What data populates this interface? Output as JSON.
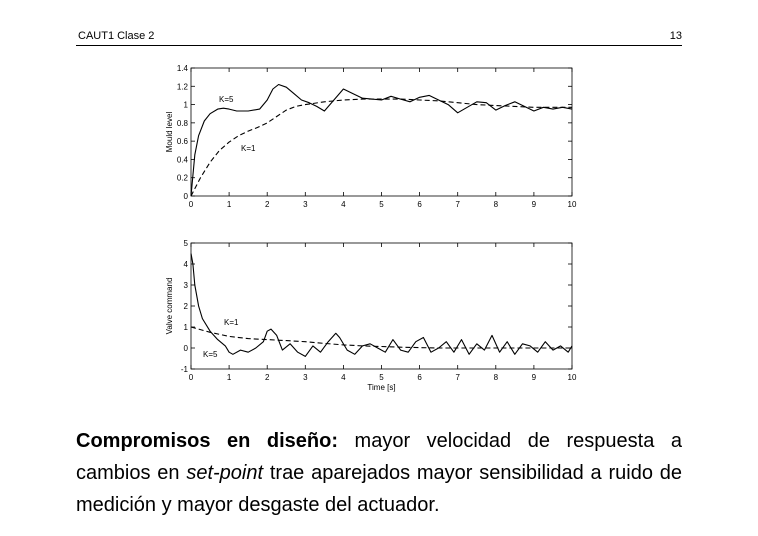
{
  "header": {
    "left": "CAUT1 Clase 2",
    "right": "13"
  },
  "chart_data": [
    {
      "type": "line",
      "ylabel": "Mould level",
      "xlim": [
        0,
        10
      ],
      "ylim": [
        0,
        1.4
      ],
      "xticks": [
        0,
        1,
        2,
        3,
        4,
        5,
        6,
        7,
        8,
        9,
        10
      ],
      "yticks": [
        0,
        0.2,
        0.4,
        0.6,
        0.8,
        1,
        1.2,
        1.4
      ],
      "series": [
        {
          "name": "K=5",
          "style": "solid",
          "x": [
            0,
            0.1,
            0.2,
            0.35,
            0.5,
            0.7,
            0.85,
            1.0,
            1.2,
            1.5,
            1.8,
            2.0,
            2.15,
            2.3,
            2.5,
            2.7,
            2.9,
            3.1,
            3.3,
            3.5,
            3.75,
            4.0,
            4.25,
            4.5,
            4.75,
            5.0,
            5.25,
            5.5,
            5.75,
            6.0,
            6.25,
            6.5,
            6.75,
            7.0,
            7.25,
            7.5,
            7.75,
            8.0,
            8.25,
            8.5,
            8.75,
            9.0,
            9.25,
            9.5,
            9.75,
            10.0
          ],
          "values": [
            0,
            0.45,
            0.66,
            0.82,
            0.9,
            0.95,
            0.96,
            0.95,
            0.93,
            0.93,
            0.95,
            1.05,
            1.17,
            1.22,
            1.19,
            1.12,
            1.05,
            1.02,
            0.98,
            0.93,
            1.05,
            1.17,
            1.12,
            1.07,
            1.06,
            1.05,
            1.09,
            1.06,
            1.03,
            1.08,
            1.1,
            1.05,
            1.0,
            0.91,
            0.97,
            1.03,
            1.02,
            0.94,
            0.99,
            1.03,
            0.98,
            0.93,
            0.97,
            0.95,
            0.97,
            0.95
          ]
        },
        {
          "name": "K=1",
          "style": "dashed",
          "x": [
            0,
            0.25,
            0.5,
            0.75,
            1.0,
            1.25,
            1.5,
            1.75,
            2.0,
            2.25,
            2.5,
            2.75,
            3.0,
            3.5,
            4.0,
            4.5,
            5.0,
            5.5,
            6.0,
            6.5,
            7.0,
            7.5,
            8.0,
            8.5,
            9.0,
            9.5,
            10.0
          ],
          "values": [
            0,
            0.2,
            0.37,
            0.5,
            0.59,
            0.66,
            0.71,
            0.75,
            0.8,
            0.87,
            0.94,
            0.98,
            1.0,
            1.03,
            1.05,
            1.06,
            1.06,
            1.06,
            1.05,
            1.04,
            1.02,
            1.0,
            0.99,
            0.98,
            0.97,
            0.97,
            0.97
          ]
        }
      ]
    },
    {
      "type": "line",
      "xlabel": "Time [s]",
      "ylabel": "Valve command",
      "xlim": [
        0,
        10
      ],
      "ylim": [
        -1,
        5
      ],
      "xticks": [
        0,
        1,
        2,
        3,
        4,
        5,
        6,
        7,
        8,
        9,
        10
      ],
      "yticks": [
        -1,
        0,
        1,
        2,
        3,
        4,
        5
      ],
      "series": [
        {
          "name": "K=5",
          "style": "solid",
          "x": [
            0,
            0.05,
            0.1,
            0.2,
            0.3,
            0.5,
            0.7,
            0.9,
            1.0,
            1.1,
            1.3,
            1.5,
            1.7,
            1.9,
            2.0,
            2.1,
            2.25,
            2.4,
            2.6,
            2.8,
            3.0,
            3.2,
            3.4,
            3.6,
            3.8,
            3.9,
            4.1,
            4.3,
            4.5,
            4.7,
            4.9,
            5.1,
            5.3,
            5.5,
            5.7,
            5.9,
            6.1,
            6.3,
            6.5,
            6.7,
            6.9,
            7.1,
            7.3,
            7.5,
            7.7,
            7.9,
            8.1,
            8.3,
            8.5,
            8.7,
            8.9,
            9.1,
            9.3,
            9.5,
            9.7,
            9.9,
            10.0
          ],
          "values": [
            4.5,
            4.0,
            3.0,
            2.0,
            1.4,
            0.8,
            0.4,
            0.1,
            -0.2,
            -0.3,
            -0.1,
            -0.2,
            0.0,
            0.3,
            0.8,
            0.9,
            0.6,
            -0.1,
            0.2,
            -0.2,
            -0.4,
            0.1,
            -0.2,
            0.3,
            0.7,
            0.5,
            -0.1,
            -0.3,
            0.1,
            0.2,
            0.0,
            -0.2,
            0.4,
            -0.1,
            -0.2,
            0.3,
            0.5,
            -0.2,
            0.0,
            0.3,
            -0.2,
            0.4,
            -0.3,
            0.2,
            -0.1,
            0.6,
            -0.2,
            0.3,
            -0.3,
            0.2,
            0.1,
            -0.2,
            0.3,
            -0.1,
            0.1,
            -0.2,
            0.1
          ]
        },
        {
          "name": "K=1",
          "style": "dashed",
          "x": [
            0,
            0.5,
            1.0,
            1.5,
            2.0,
            2.5,
            3.0,
            3.5,
            4.0,
            4.5,
            5.0,
            5.5,
            6.0,
            6.5,
            7.0,
            7.5,
            8.0,
            8.5,
            9.0,
            9.5,
            10.0
          ],
          "values": [
            1.0,
            0.75,
            0.55,
            0.45,
            0.4,
            0.35,
            0.3,
            0.22,
            0.15,
            0.1,
            0.07,
            0.04,
            0.02,
            0.0,
            0.0,
            0.0,
            0.0,
            0.0,
            0.0,
            0.0,
            0.0
          ]
        }
      ]
    }
  ],
  "paragraph": {
    "bold": "Compromisos en diseño:",
    "text1": " mayor velocidad de respuesta a cambios en ",
    "italic": "set-point",
    "text2": " trae aparejados mayor sensibilidad a ruido de medición y mayor desgaste del actuador."
  }
}
